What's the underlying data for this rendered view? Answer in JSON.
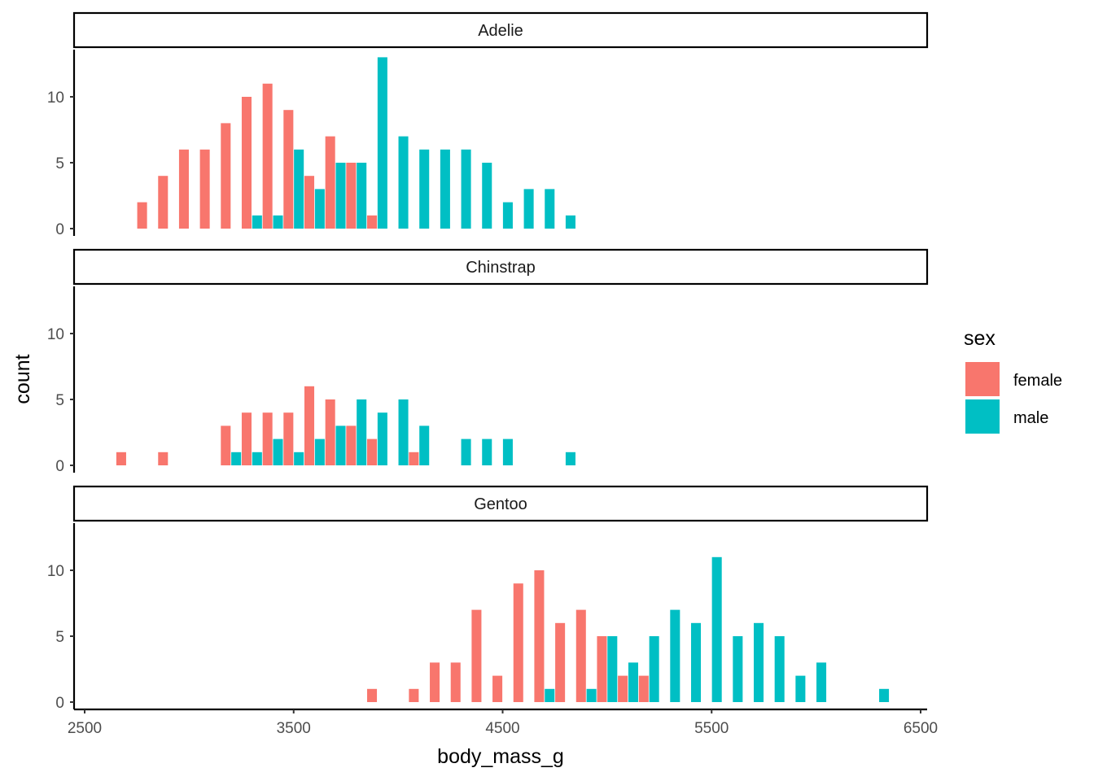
{
  "chart_data": {
    "type": "bar",
    "xlabel": "body_mass_g",
    "ylabel": "count",
    "xlim": [
      2500,
      6500
    ],
    "ylim": [
      0,
      13
    ],
    "x_ticks": [
      2500,
      3500,
      4500,
      5500,
      6500
    ],
    "y_ticks": [
      0,
      5,
      10
    ],
    "bin_width": 100,
    "legend": {
      "title": "sex",
      "placement": "right",
      "entries": [
        {
          "name": "female",
          "color": "#F8766D"
        },
        {
          "name": "male",
          "color": "#00BFC4"
        }
      ]
    },
    "panels": [
      {
        "label": "Adelie",
        "series": [
          {
            "name": "female",
            "bins": [
              [
                2800,
                2
              ],
              [
                2900,
                4
              ],
              [
                3000,
                6
              ],
              [
                3100,
                6
              ],
              [
                3200,
                8
              ],
              [
                3300,
                10
              ],
              [
                3400,
                11
              ],
              [
                3500,
                9
              ],
              [
                3600,
                4
              ],
              [
                3700,
                7
              ],
              [
                3800,
                5
              ],
              [
                3900,
                1
              ]
            ]
          },
          {
            "name": "male",
            "bins": [
              [
                3300,
                1
              ],
              [
                3400,
                1
              ],
              [
                3500,
                6
              ],
              [
                3600,
                3
              ],
              [
                3700,
                5
              ],
              [
                3800,
                5
              ],
              [
                3900,
                13
              ],
              [
                4000,
                7
              ],
              [
                4100,
                6
              ],
              [
                4200,
                6
              ],
              [
                4300,
                6
              ],
              [
                4400,
                5
              ],
              [
                4500,
                2
              ],
              [
                4600,
                3
              ],
              [
                4700,
                3
              ],
              [
                4800,
                1
              ]
            ]
          }
        ]
      },
      {
        "label": "Chinstrap",
        "series": [
          {
            "name": "female",
            "bins": [
              [
                2700,
                1
              ],
              [
                2900,
                1
              ],
              [
                3200,
                3
              ],
              [
                3300,
                4
              ],
              [
                3400,
                4
              ],
              [
                3500,
                4
              ],
              [
                3600,
                6
              ],
              [
                3700,
                5
              ],
              [
                3800,
                3
              ],
              [
                3900,
                2
              ],
              [
                4100,
                1
              ]
            ]
          },
          {
            "name": "male",
            "bins": [
              [
                3200,
                1
              ],
              [
                3300,
                1
              ],
              [
                3400,
                2
              ],
              [
                3500,
                1
              ],
              [
                3600,
                2
              ],
              [
                3700,
                3
              ],
              [
                3800,
                5
              ],
              [
                3900,
                4
              ],
              [
                4000,
                5
              ],
              [
                4100,
                3
              ],
              [
                4300,
                2
              ],
              [
                4400,
                2
              ],
              [
                4500,
                2
              ],
              [
                4800,
                1
              ]
            ]
          }
        ]
      },
      {
        "label": "Gentoo",
        "series": [
          {
            "name": "female",
            "bins": [
              [
                3900,
                1
              ],
              [
                4100,
                1
              ],
              [
                4200,
                3
              ],
              [
                4300,
                3
              ],
              [
                4400,
                7
              ],
              [
                4500,
                2
              ],
              [
                4600,
                9
              ],
              [
                4700,
                10
              ],
              [
                4800,
                6
              ],
              [
                4900,
                7
              ],
              [
                5000,
                5
              ],
              [
                5100,
                2
              ],
              [
                5200,
                2
              ]
            ]
          },
          {
            "name": "male",
            "bins": [
              [
                4700,
                1
              ],
              [
                4900,
                1
              ],
              [
                5000,
                5
              ],
              [
                5100,
                3
              ],
              [
                5200,
                5
              ],
              [
                5300,
                7
              ],
              [
                5400,
                6
              ],
              [
                5500,
                11
              ],
              [
                5600,
                5
              ],
              [
                5700,
                6
              ],
              [
                5800,
                5
              ],
              [
                5900,
                2
              ],
              [
                6000,
                3
              ],
              [
                6300,
                1
              ]
            ]
          }
        ]
      }
    ]
  }
}
